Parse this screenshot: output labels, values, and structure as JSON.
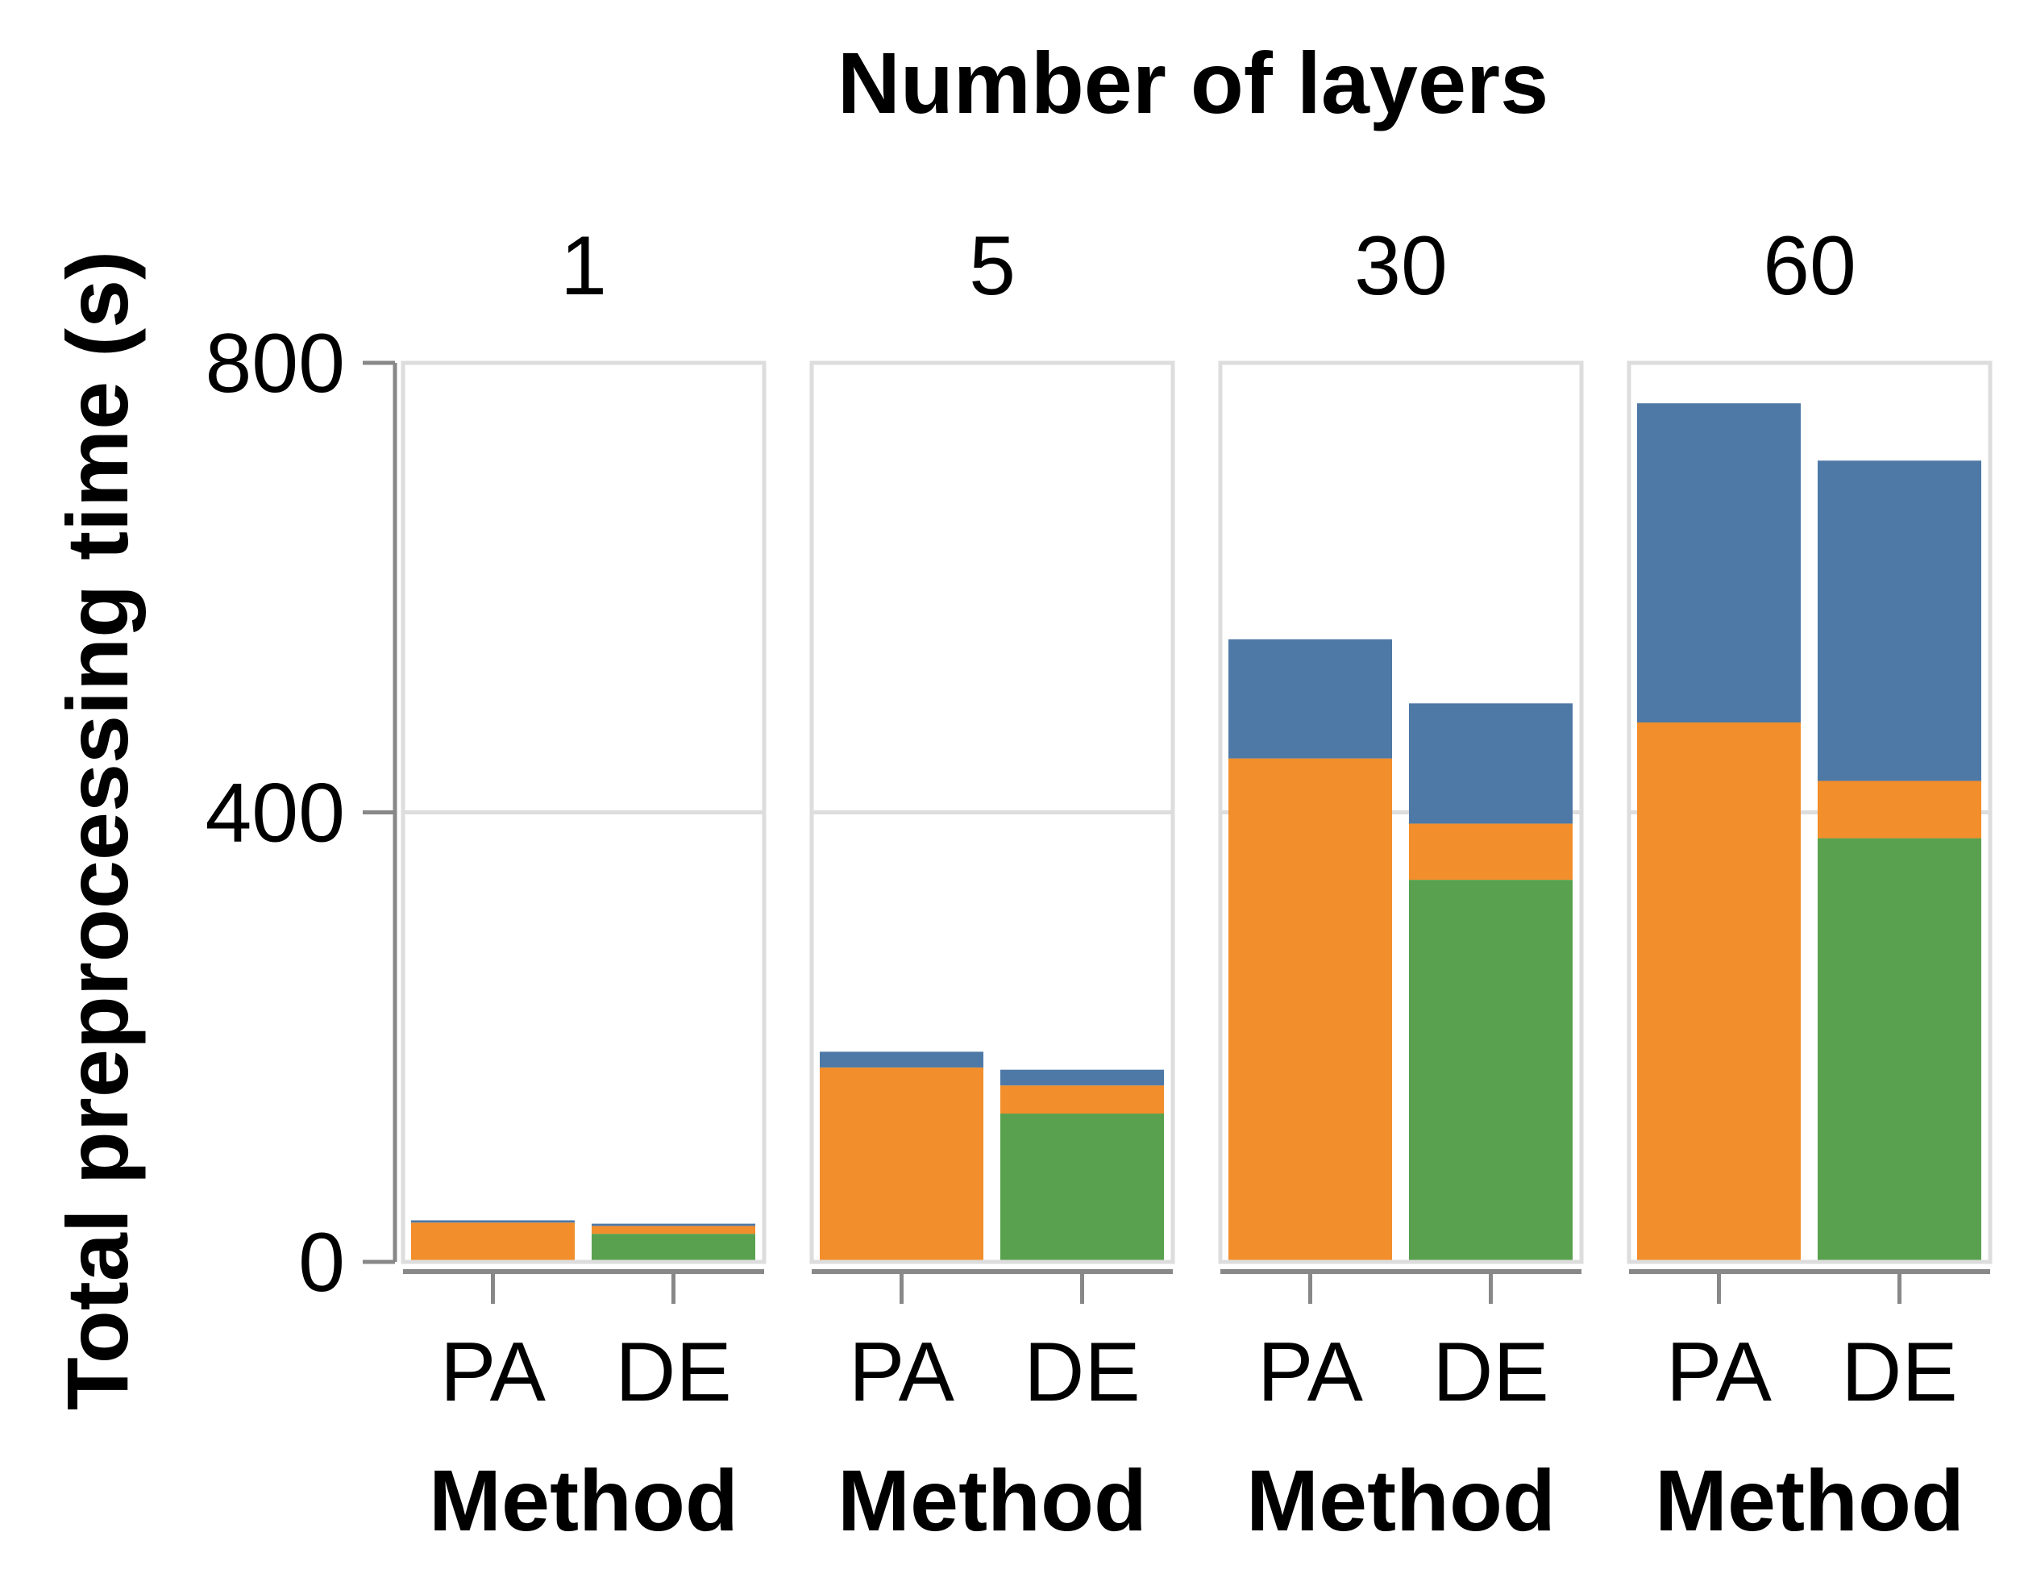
{
  "chart_data": {
    "type": "bar",
    "stacked": true,
    "title": "Number of layers",
    "ylabel": "Total preprocessing time (s)",
    "xlabel": "Method",
    "ylim": [
      0,
      800
    ],
    "yticks": [
      0,
      400,
      800
    ],
    "grid": true,
    "categories": [
      "PA",
      "DE"
    ],
    "colors": {
      "green": "#59a14f",
      "orange": "#f28e2b",
      "blue": "#4e79a7"
    },
    "facets": [
      {
        "label": "1",
        "bars": [
          {
            "category": "PA",
            "green": 0,
            "orange": 35,
            "blue": 2
          },
          {
            "category": "DE",
            "green": 25,
            "orange": 7,
            "blue": 2
          }
        ]
      },
      {
        "label": "5",
        "bars": [
          {
            "category": "PA",
            "green": 0,
            "orange": 173,
            "blue": 14
          },
          {
            "category": "DE",
            "green": 132,
            "orange": 25,
            "blue": 14
          }
        ]
      },
      {
        "label": "30",
        "bars": [
          {
            "category": "PA",
            "green": 0,
            "orange": 448,
            "blue": 106
          },
          {
            "category": "DE",
            "green": 340,
            "orange": 50,
            "blue": 107
          }
        ]
      },
      {
        "label": "60",
        "bars": [
          {
            "category": "PA",
            "green": 0,
            "orange": 480,
            "blue": 284
          },
          {
            "category": "DE",
            "green": 377,
            "orange": 51,
            "blue": 285
          }
        ]
      }
    ]
  }
}
